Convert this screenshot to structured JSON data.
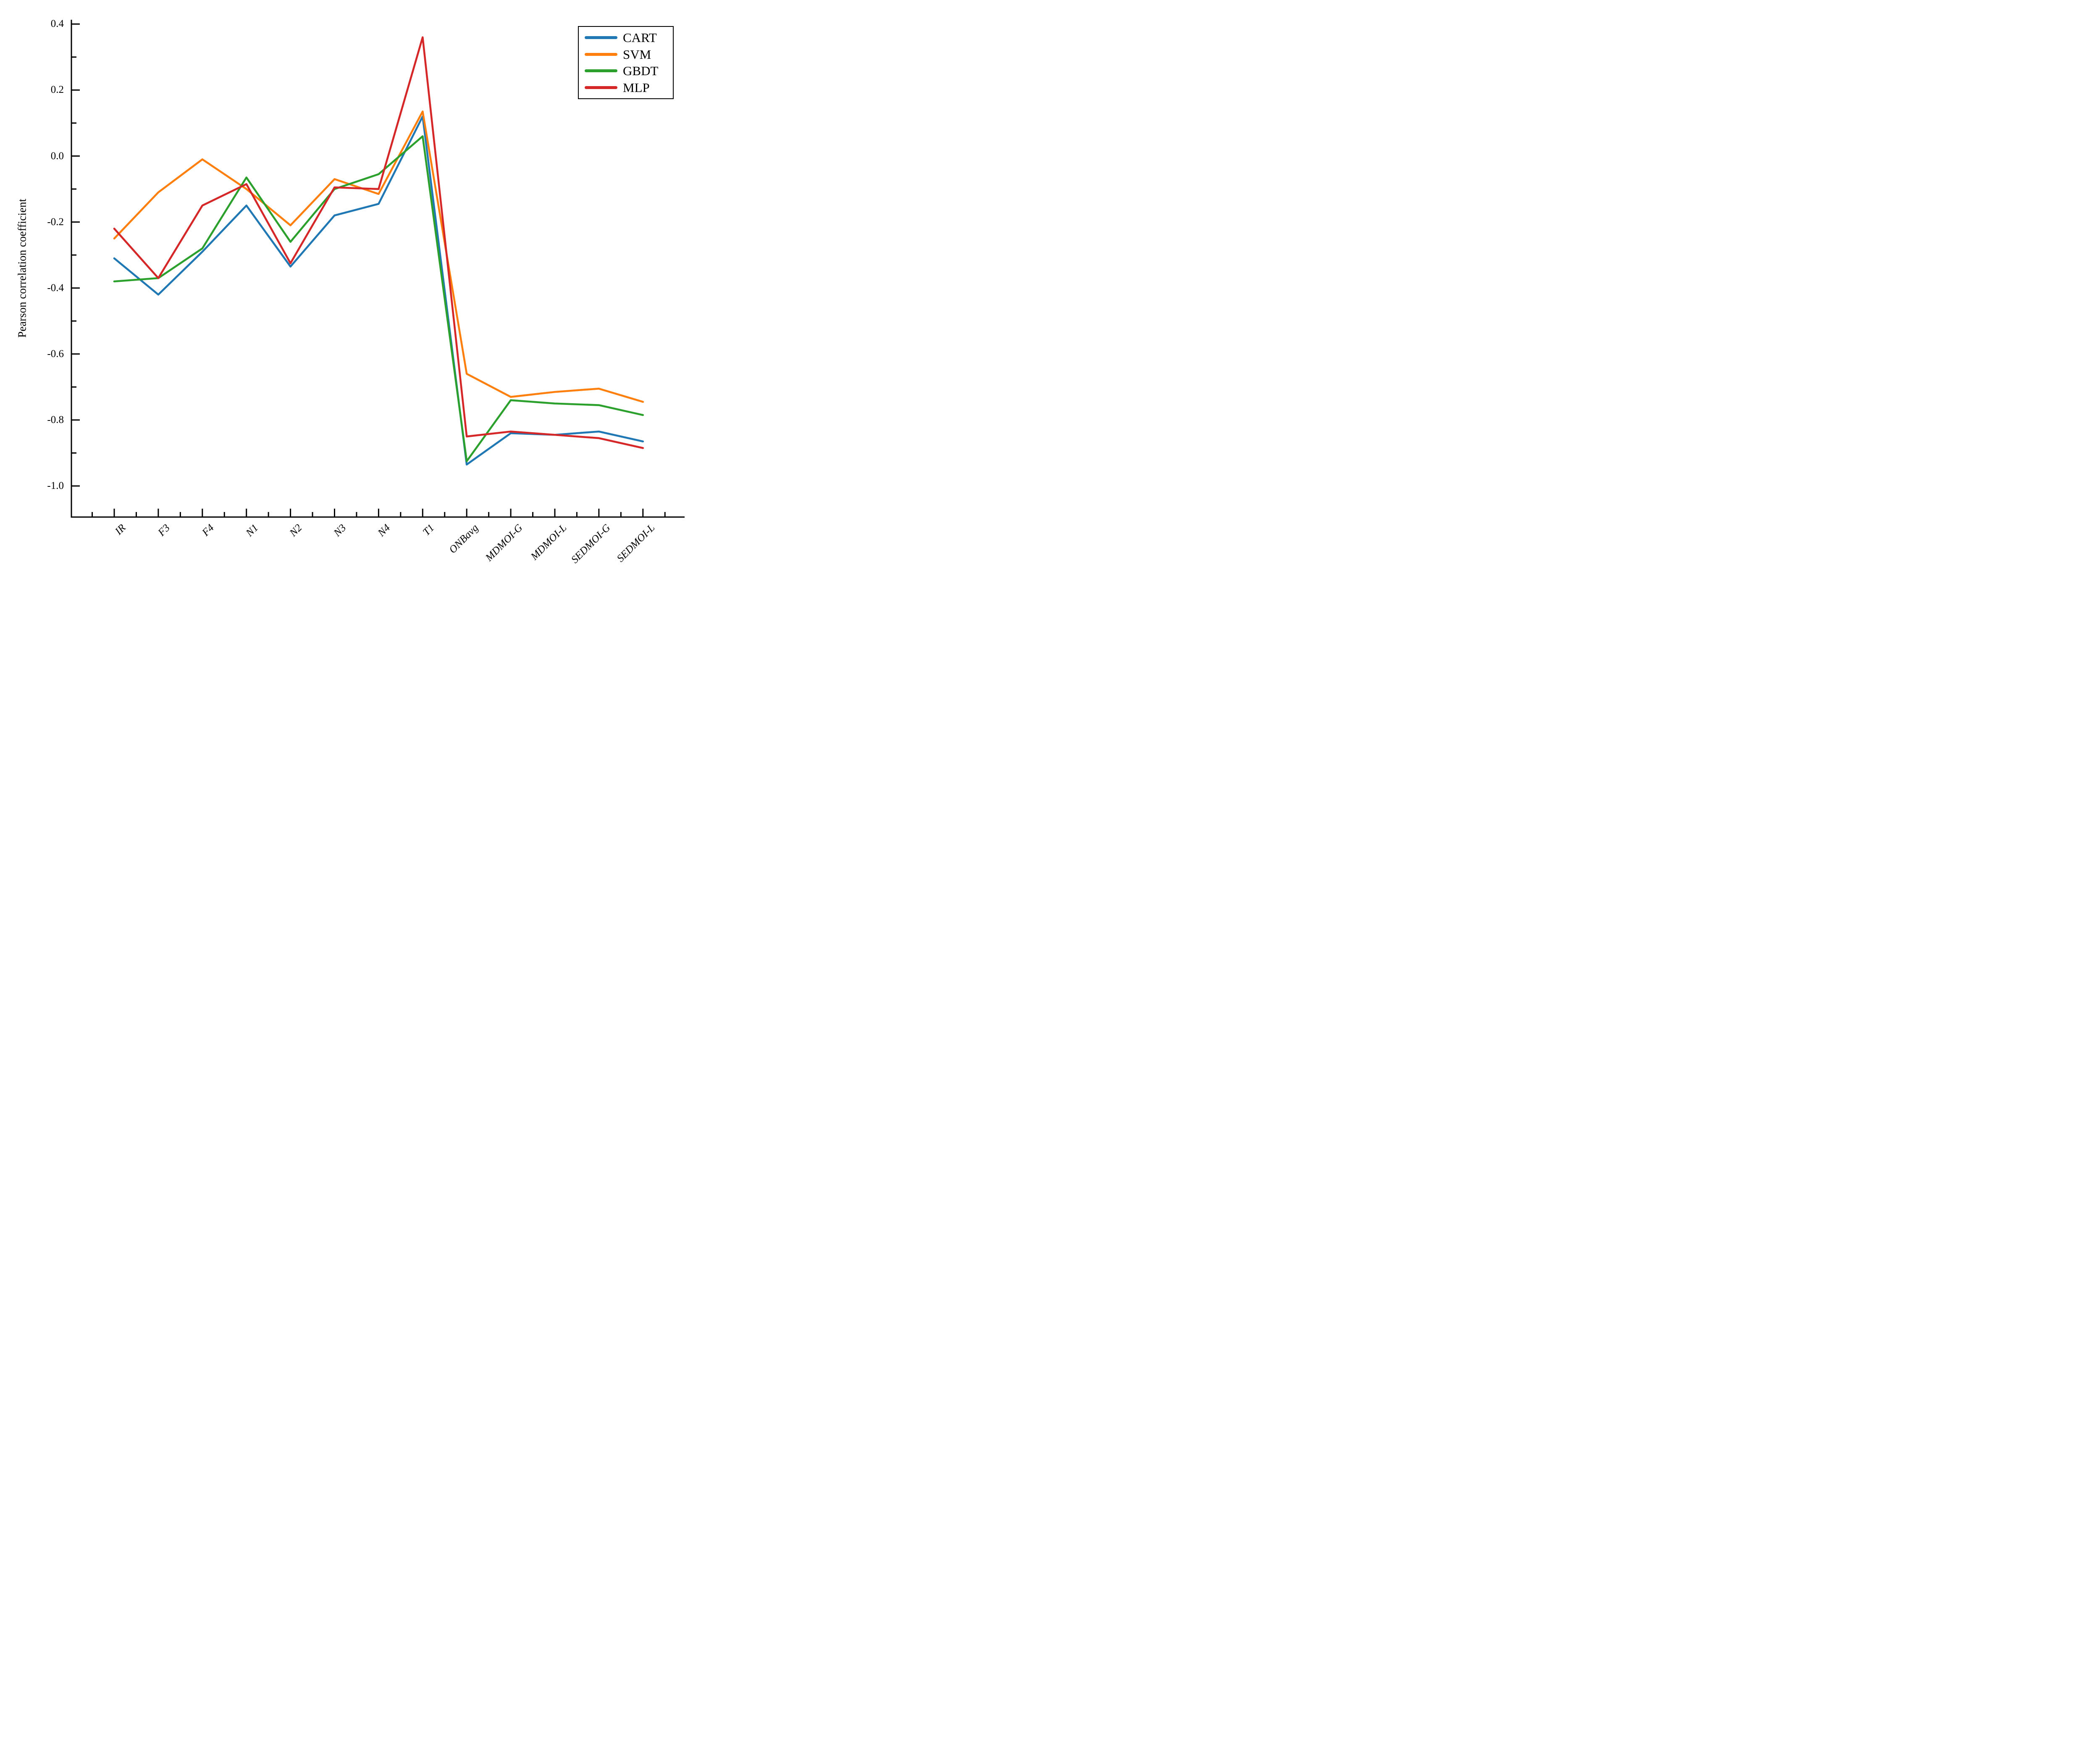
{
  "figure": {
    "background": "#ffffff",
    "axis_color": "#000000"
  },
  "chart_data": {
    "type": "line",
    "title": "",
    "xlabel": "",
    "ylabel": "Pearson correlation coefficient",
    "ylim": [
      -1.094,
      0.414
    ],
    "grid": false,
    "legend_position": "upper right",
    "yticks": [
      0.4,
      0.2,
      0.0,
      -0.2,
      -0.4,
      -0.6,
      -0.8,
      -1.0
    ],
    "ytick_labels": [
      "0.4",
      "0.2",
      "0.0",
      "-0.2",
      "-0.4",
      "-0.6",
      "-0.8",
      "-1.0"
    ],
    "yticks_minor": [
      0.3,
      0.1,
      -0.1,
      -0.3,
      -0.5,
      -0.7,
      -0.9
    ],
    "categories": [
      "IR",
      "F3",
      "F4",
      "N1",
      "N2",
      "N3",
      "N4",
      "T1",
      "ONBavg",
      "MDMOI-G",
      "MDMOI-L",
      "SEDMOI-G",
      "SEDMOI-L"
    ],
    "series": [
      {
        "name": "CART",
        "color": "#1f77b4",
        "values": [
          -0.31,
          -0.42,
          -0.29,
          -0.15,
          -0.335,
          -0.18,
          -0.145,
          0.12,
          -0.935,
          -0.84,
          -0.845,
          -0.835,
          -0.865
        ]
      },
      {
        "name": "SVM",
        "color": "#ff7f0e",
        "values": [
          -0.25,
          -0.11,
          -0.01,
          -0.1,
          -0.21,
          -0.07,
          -0.115,
          0.135,
          -0.66,
          -0.73,
          -0.715,
          -0.705,
          -0.745
        ]
      },
      {
        "name": "GBDT",
        "color": "#2ca02c",
        "values": [
          -0.38,
          -0.37,
          -0.28,
          -0.065,
          -0.26,
          -0.1,
          -0.055,
          0.06,
          -0.925,
          -0.74,
          -0.75,
          -0.755,
          -0.785
        ]
      },
      {
        "name": "MLP",
        "color": "#d62728",
        "values": [
          -0.22,
          -0.37,
          -0.15,
          -0.085,
          -0.325,
          -0.095,
          -0.1,
          0.36,
          -0.85,
          -0.835,
          -0.845,
          -0.855,
          -0.885
        ]
      }
    ]
  }
}
